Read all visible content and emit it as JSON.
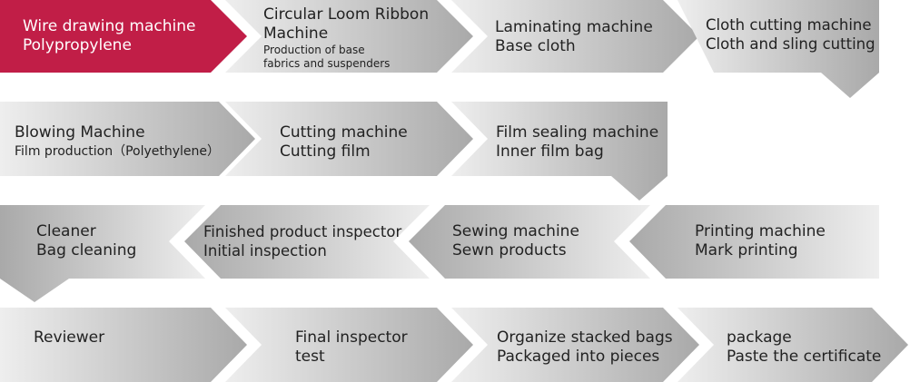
{
  "colors": {
    "highlight": "#C11E47",
    "arrow_light": "#EEEEEE",
    "arrow_dark": "#A9A9A9",
    "text": "#222222",
    "text_on_highlight": "#FFFFFF"
  },
  "rows": [
    {
      "steps": [
        {
          "line1": "Wire drawing machine",
          "line2": "Polypropylene",
          "highlighted": true
        },
        {
          "line1": "Circular Loom Ribbon",
          "line2": "Machine",
          "note1": "Production of base",
          "note2": "fabrics and suspenders"
        },
        {
          "line1": "Laminating machine",
          "line2": "Base cloth"
        },
        {
          "line1": "Cloth cutting machine",
          "line2": "Cloth and sling cutting"
        }
      ]
    },
    {
      "steps": [
        {
          "line1": "Blowing Machine",
          "line2": "Film production（Polyethylene）"
        },
        {
          "line1": "Cutting machine",
          "line2": "Cutting film"
        },
        {
          "line1": "Film sealing machine",
          "line2": "Inner film bag"
        }
      ]
    },
    {
      "steps": [
        {
          "line1": "Cleaner",
          "line2": "Bag cleaning"
        },
        {
          "line1": "Finished product inspector",
          "line2": "Initial inspection"
        },
        {
          "line1": "Sewing machine",
          "line2": "Sewn products"
        },
        {
          "line1": "Printing machine",
          "line2": "Mark printing"
        }
      ]
    },
    {
      "steps": [
        {
          "line1": "Reviewer",
          "line2": ""
        },
        {
          "line1": "Final inspector",
          "line2": "test"
        },
        {
          "line1": "Organize stacked bags",
          "line2": "Packaged into pieces"
        },
        {
          "line1": "package",
          "line2": "Paste the certificate"
        }
      ]
    }
  ]
}
